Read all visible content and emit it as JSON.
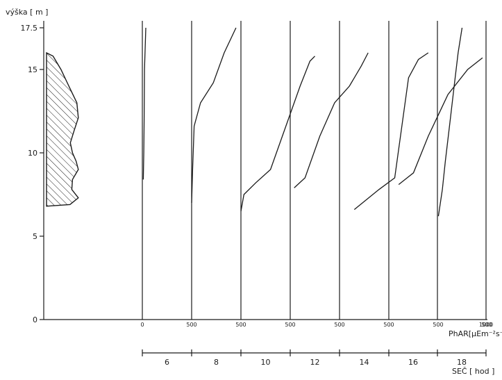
{
  "chart_data": {
    "type": "line",
    "title": "",
    "ylabel": "výška [ m ]",
    "xlabel": "PhAR[μEm⁻²s⁻¹]",
    "time_label": "SEČ [ hod ]",
    "ylim": [
      0,
      17.5
    ],
    "y_ticks": [
      {
        "value": 0,
        "label": "0"
      },
      {
        "value": 5,
        "label": "5"
      },
      {
        "value": 10,
        "label": "10"
      },
      {
        "value": 15,
        "label": "15"
      },
      {
        "value": 17.5,
        "label": "17.5"
      }
    ],
    "panel_x_range": [
      0,
      1000
    ],
    "panel_tick_labels": [
      "0",
      "500",
      "1000"
    ],
    "colors": {
      "ink": "#1a1a1a",
      "background": "#ffffff"
    },
    "crown_profile": {
      "description_series": "hatched crown shape (width in arbitrary units vs height)",
      "height": [
        6.8,
        6.9,
        7.3,
        7.8,
        8.4,
        9.0,
        9.5,
        10.0,
        10.6,
        11.3,
        12.1,
        13.0,
        14.0,
        15.0,
        15.8,
        16.0
      ],
      "width": [
        0,
        0.65,
        0.88,
        0.7,
        0.72,
        0.88,
        0.82,
        0.72,
        0.66,
        0.76,
        0.88,
        0.84,
        0.62,
        0.4,
        0.18,
        0
      ]
    },
    "series": [
      {
        "hour": "6",
        "values": [
          [
            10,
            8.4
          ],
          [
            15,
            10.0
          ],
          [
            18,
            12.0
          ],
          [
            22,
            15.0
          ],
          [
            35,
            17.5
          ]
        ]
      },
      {
        "hour": "8",
        "values": [
          [
            0,
            7.0
          ],
          [
            10,
            9.0
          ],
          [
            25,
            11.6
          ],
          [
            90,
            13.0
          ],
          [
            220,
            14.2
          ],
          [
            330,
            16.0
          ],
          [
            450,
            17.5
          ]
        ]
      },
      {
        "hour": "10",
        "values": [
          [
            0,
            6.5
          ],
          [
            30,
            7.5
          ],
          [
            150,
            8.2
          ],
          [
            300,
            9.0
          ],
          [
            450,
            11.5
          ],
          [
            600,
            14.0
          ],
          [
            700,
            15.5
          ],
          [
            750,
            15.8
          ]
        ]
      },
      {
        "hour": "12",
        "values": [
          [
            40,
            7.9
          ],
          [
            150,
            8.5
          ],
          [
            300,
            11.0
          ],
          [
            450,
            13.0
          ],
          [
            600,
            14.0
          ],
          [
            720,
            15.2
          ],
          [
            790,
            16.0
          ]
        ]
      },
      {
        "hour": "14",
        "values": [
          [
            150,
            6.6
          ],
          [
            400,
            7.8
          ],
          [
            560,
            8.5
          ],
          [
            700,
            14.5
          ],
          [
            800,
            15.6
          ],
          [
            900,
            16.0
          ]
        ]
      },
      {
        "hour": "16",
        "values": [
          [
            100,
            8.1
          ],
          [
            250,
            8.8
          ],
          [
            400,
            11.0
          ],
          [
            600,
            13.5
          ],
          [
            800,
            15.0
          ],
          [
            950,
            15.7
          ]
        ]
      },
      {
        "hour": "18",
        "values": [
          [
            10,
            6.2
          ],
          [
            50,
            7.8
          ],
          [
            80,
            9.5
          ],
          [
            130,
            12.0
          ],
          [
            170,
            14.0
          ],
          [
            210,
            16.0
          ],
          [
            250,
            17.5
          ]
        ]
      }
    ]
  }
}
